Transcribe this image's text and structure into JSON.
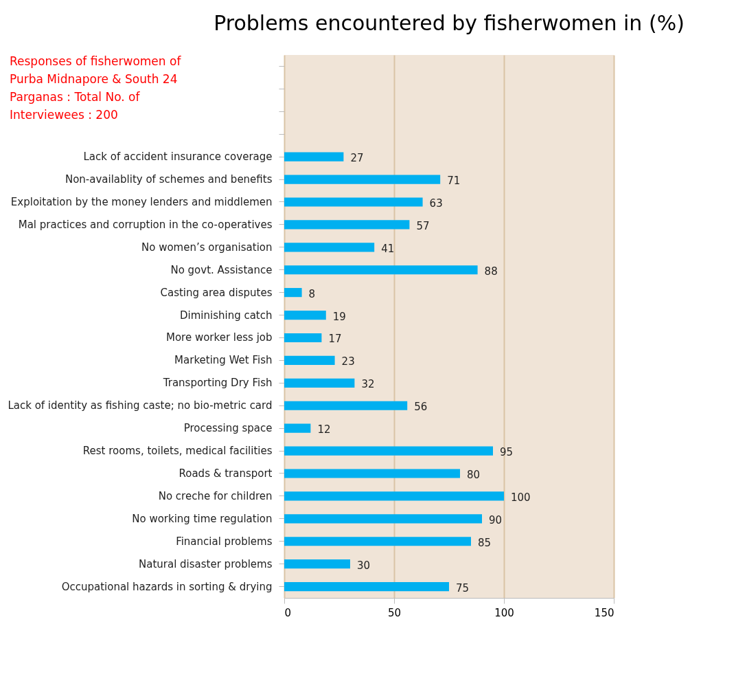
{
  "chart_data": {
    "type": "bar",
    "orientation": "horizontal",
    "title": "Problems encountered by fisherwomen in (%)",
    "categories": [
      null,
      null,
      null,
      null,
      "Lack of accident insurance coverage",
      "Non-availablity of schemes and benefits",
      "Exploitation by the money lenders and middlemen",
      "Mal practices and corruption in the co-operatives",
      "No women’s organisation",
      "No govt. Assistance",
      "Casting area disputes",
      "Diminishing catch",
      "More worker less job",
      "Marketing Wet Fish",
      "Transporting Dry Fish",
      "Lack of identity as fishing caste; no bio-metric card",
      "Processing space",
      "Rest rooms, toilets, medical facilities",
      "Roads & transport",
      "No creche for children",
      "No working time regulation",
      "Financial problems",
      "Natural disaster problems",
      "Occupational hazards in sorting & drying"
    ],
    "values": [
      null,
      null,
      null,
      null,
      27,
      71,
      63,
      57,
      41,
      88,
      8,
      19,
      17,
      23,
      32,
      56,
      12,
      95,
      80,
      100,
      90,
      85,
      30,
      75
    ],
    "color": "#00b0f0",
    "xlim": [
      0,
      150
    ],
    "xticks": [
      0,
      50,
      100,
      150
    ],
    "grid": "x",
    "data_labels": true,
    "annotations": [
      "Responses of fisherwomen of Purba Midnapore & South 24 Parganas : Total No. of Interviewees : 200"
    ]
  }
}
